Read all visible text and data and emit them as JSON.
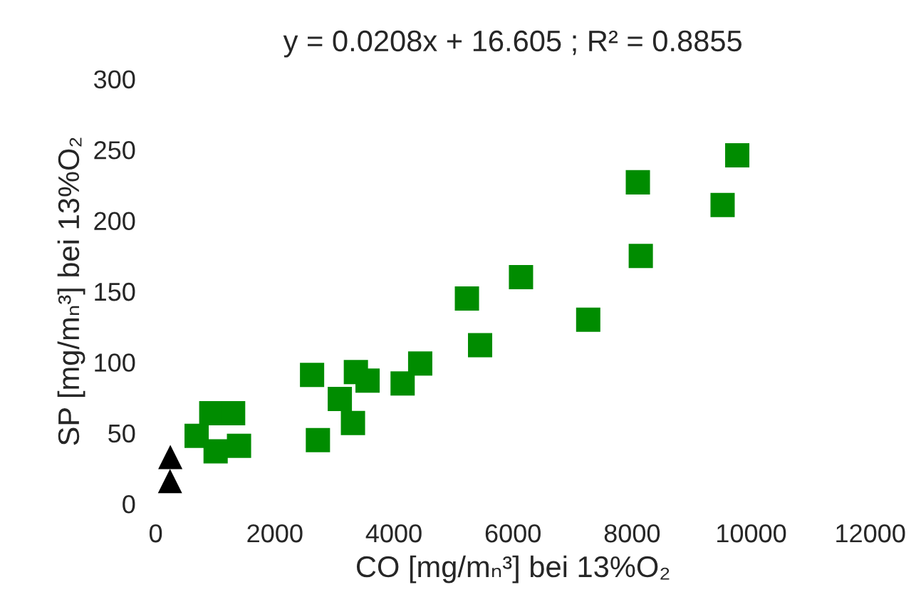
{
  "chart_data": {
    "type": "scatter",
    "title": "y = 0.0208x + 16.605 ; R² = 0.8855",
    "xlabel": "CO [mg/mₙ³] bei 13%O₂",
    "ylabel": "SP [mg/mₙ³] bei 13%O₂",
    "xlim": [
      0,
      12000
    ],
    "xticks": [
      0,
      2000,
      4000,
      6000,
      8000,
      10000,
      12000
    ],
    "ylim": [
      0,
      300
    ],
    "yticks": [
      0,
      50,
      100,
      150,
      200,
      250,
      300
    ],
    "grid": false,
    "legend": false,
    "series": [
      {
        "color": "#008c00",
        "marker": "square",
        "x": [
          687,
          933,
          1300,
          1006,
          1399,
          2626,
          2724,
          3092,
          3362,
          3558,
          3313,
          4147,
          4442,
          5227,
          5448,
          6135,
          7264,
          8147,
          8098,
          9521,
          9767
        ],
        "values": [
          48,
          64,
          64,
          37,
          41,
          91,
          45,
          74,
          93,
          87,
          57,
          85,
          99,
          145,
          112,
          160,
          130,
          175,
          227,
          211,
          246
        ]
      },
      {
        "color": "#000000",
        "marker": "triangle",
        "x": [
          245,
          240
        ],
        "values": [
          33,
          16
        ]
      }
    ]
  }
}
